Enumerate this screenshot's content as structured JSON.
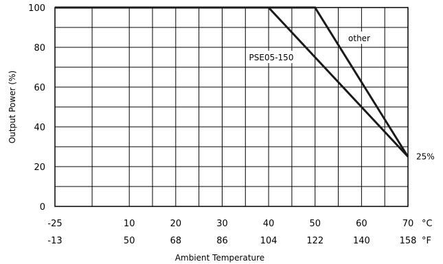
{
  "chart_data": {
    "type": "line",
    "ylabel": "Output Power  (%)",
    "xlabel": "Ambient Temperature",
    "ylim": [
      0,
      100
    ],
    "xlim": [
      -25,
      70
    ],
    "grid": true,
    "y_ticks": [
      "0",
      "20",
      "40",
      "60",
      "80",
      "100"
    ],
    "x_ticks_celsius": [
      "-25",
      "10",
      "20",
      "30",
      "40",
      "50",
      "60",
      "70"
    ],
    "x_ticks_fahrenheit": [
      "-13",
      "50",
      "68",
      "86",
      "104",
      "122",
      "140",
      "158"
    ],
    "unit_celsius": "°C",
    "unit_fahrenheit": "°F",
    "series": [
      {
        "name": "PSE05-150",
        "x": [
          -25,
          40,
          70
        ],
        "y": [
          100,
          100,
          25
        ]
      },
      {
        "name": "other",
        "x": [
          -25,
          50,
          70
        ],
        "y": [
          100,
          100,
          25
        ]
      }
    ],
    "annotations": [
      {
        "text": "25%"
      }
    ]
  }
}
